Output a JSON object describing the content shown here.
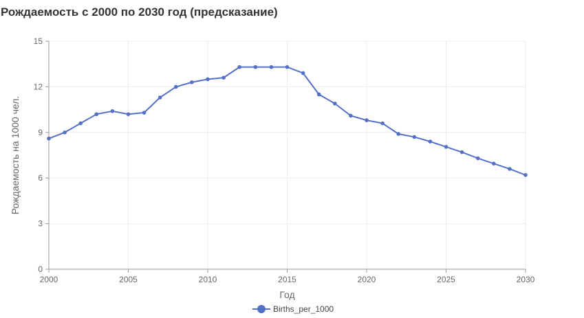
{
  "chart_data": {
    "type": "line",
    "title": "Рождаемость с 2000 по 2030 год (предсказание)",
    "xlabel": "Год",
    "ylabel": "Рождаемость на 1000 чел.",
    "x": [
      2000,
      2001,
      2002,
      2003,
      2004,
      2005,
      2006,
      2007,
      2008,
      2009,
      2010,
      2011,
      2012,
      2013,
      2014,
      2015,
      2016,
      2017,
      2018,
      2019,
      2020,
      2021,
      2022,
      2023,
      2024,
      2025,
      2026,
      2027,
      2028,
      2029,
      2030
    ],
    "series": [
      {
        "name": "Births_per_1000",
        "color": "#5470c6",
        "values": [
          8.6,
          9.0,
          9.6,
          10.2,
          10.4,
          10.2,
          10.3,
          11.3,
          12.0,
          12.3,
          12.5,
          12.6,
          13.3,
          13.3,
          13.3,
          13.3,
          12.9,
          11.5,
          10.9,
          10.1,
          9.8,
          9.6,
          8.9,
          8.7,
          8.4,
          8.05,
          7.7,
          7.3,
          6.95,
          6.6,
          6.2
        ]
      }
    ],
    "xlim": [
      2000,
      2030
    ],
    "ylim": [
      0,
      15
    ],
    "xticks": [
      "2000",
      "2005",
      "2010",
      "2015",
      "2020",
      "2025",
      "2030"
    ],
    "yticks": [
      "0",
      "3",
      "6",
      "9",
      "12",
      "15"
    ],
    "grid": true,
    "legend": "bottom-center"
  }
}
